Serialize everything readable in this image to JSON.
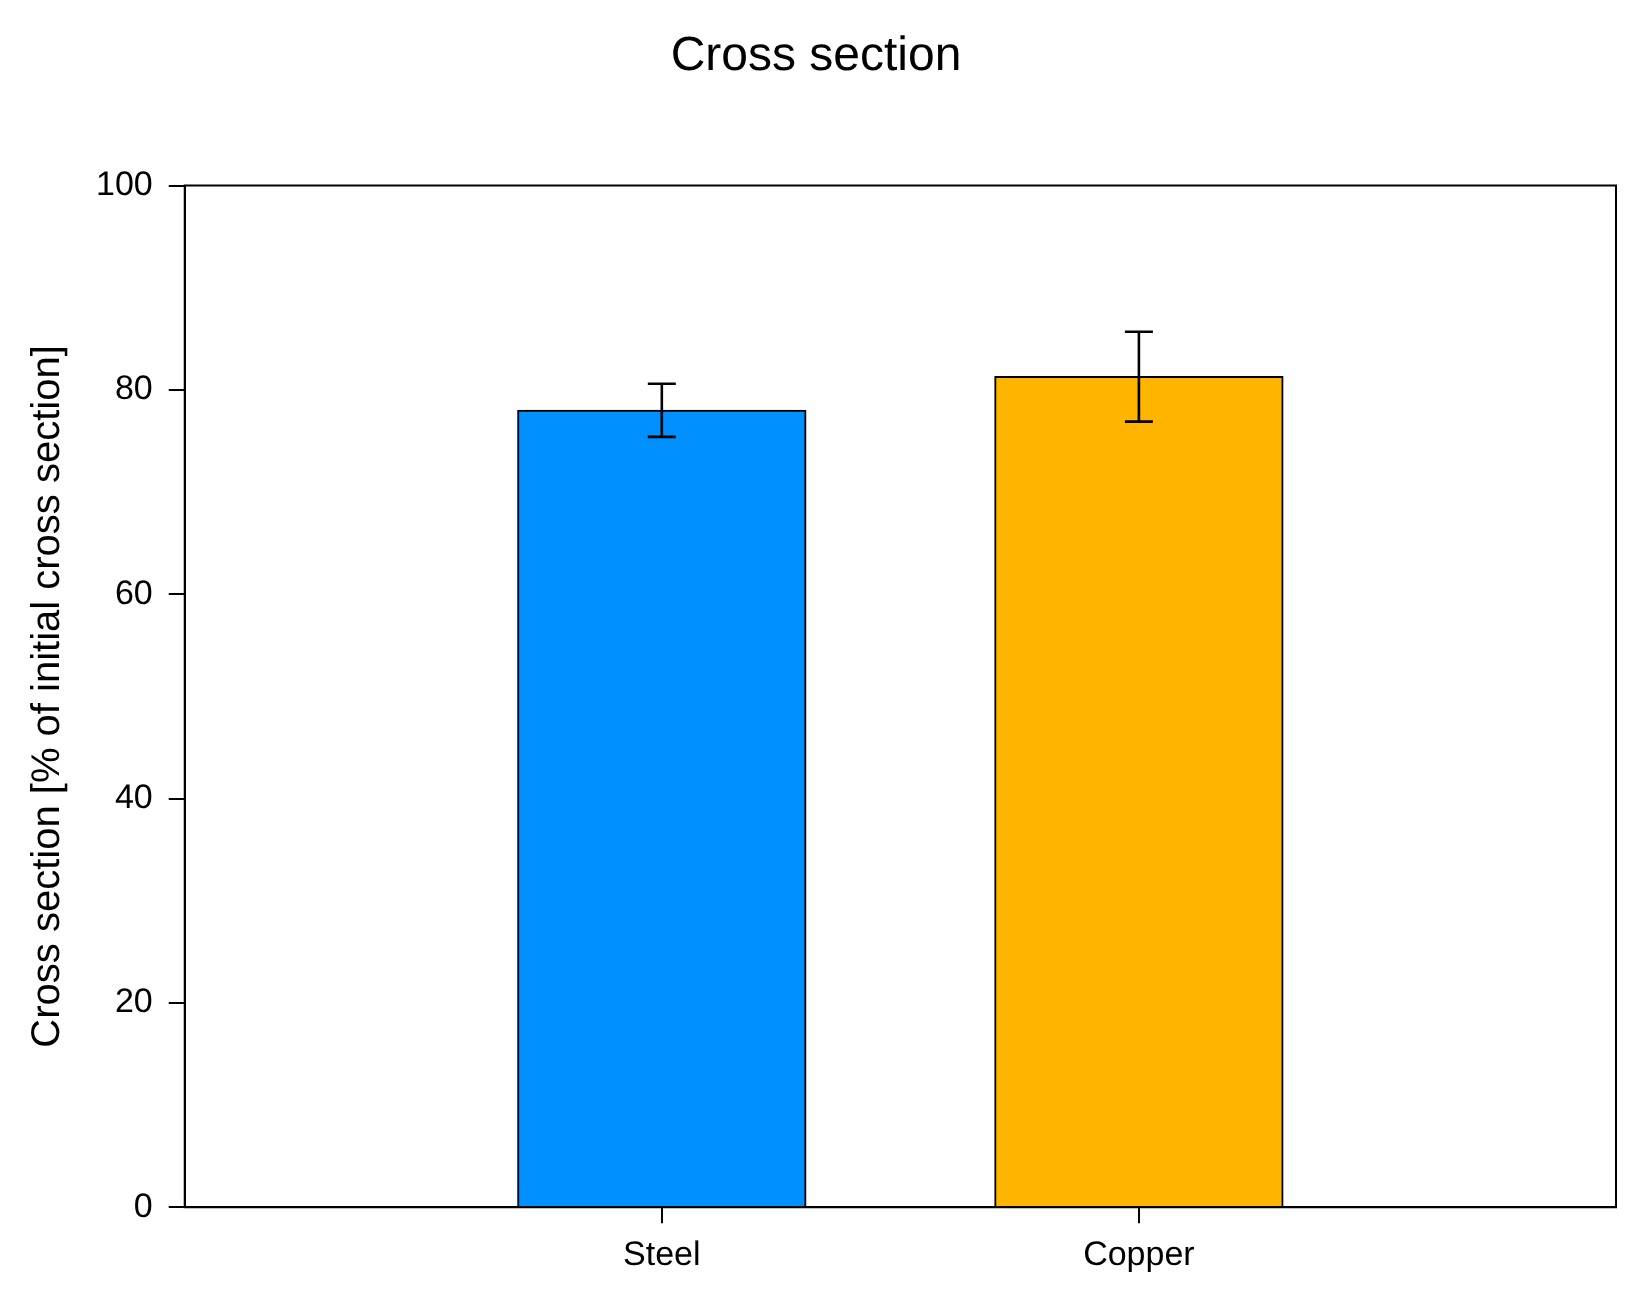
{
  "chart_data": {
    "type": "bar",
    "title": "Cross section",
    "ylabel": "Cross section [% of initial cross section]",
    "categories": [
      "Steel",
      "Copper"
    ],
    "values": [
      78.0,
      81.3
    ],
    "colors": [
      "#0090ff",
      "#ffb400"
    ],
    "errors": [
      [
        75.4,
        80.6
      ],
      [
        76.9,
        85.7
      ]
    ],
    "ylim": [
      0,
      100
    ],
    "yticks": [
      0,
      20,
      40,
      60,
      80,
      100
    ],
    "grid": false,
    "legend": false
  }
}
